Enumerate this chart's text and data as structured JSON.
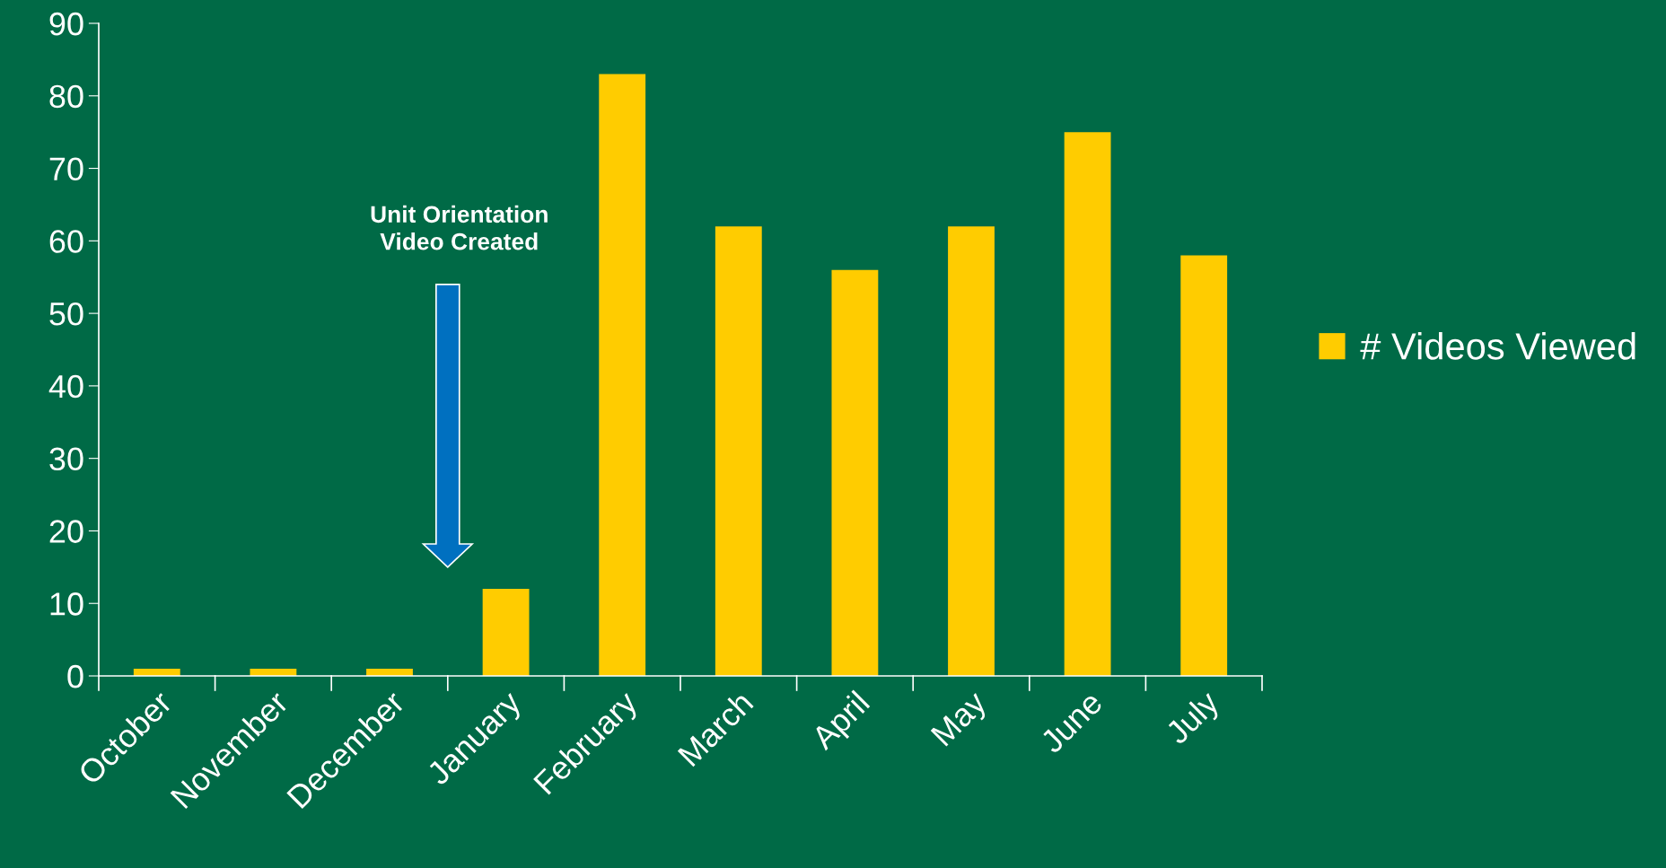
{
  "chart_data": {
    "type": "bar",
    "categories": [
      "October",
      "November",
      "December",
      "January",
      "February",
      "March",
      "April",
      "May",
      "June",
      "July"
    ],
    "series": [
      {
        "name": "# Videos Viewed",
        "color": "#ffcc00",
        "values": [
          1,
          1,
          1,
          12,
          83,
          62,
          56,
          62,
          75,
          58
        ]
      }
    ],
    "ylim": [
      0,
      90
    ],
    "yticks": [
      0,
      10,
      20,
      30,
      40,
      50,
      60,
      70,
      80,
      90
    ],
    "grid": false,
    "legend": "right",
    "annotations": [
      "Unit Orientation\nVideo Created"
    ]
  }
}
